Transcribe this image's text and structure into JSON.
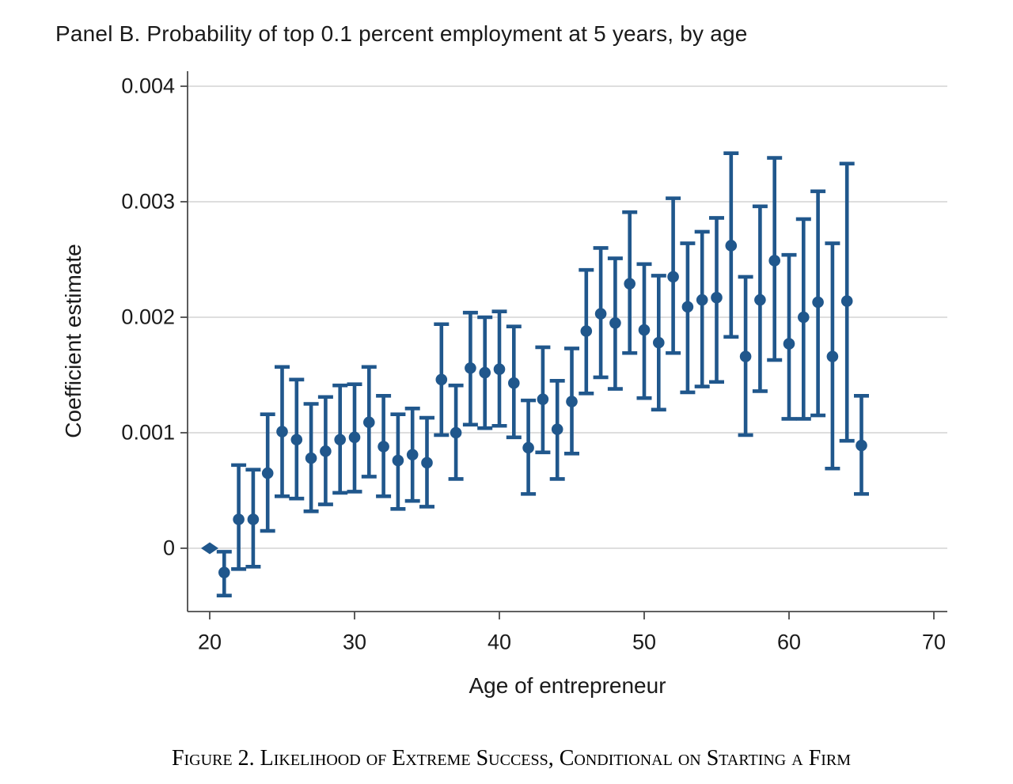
{
  "chart_data": {
    "type": "scatter",
    "subtype": "coefficient-plot-with-95ci-error-bars",
    "title": "Panel B. Probability of top 0.1 percent employment at 5 years, by age",
    "xlabel": "Age of entrepreneur",
    "ylabel": "Coefficient estimate",
    "caption": "Figure 2. Likelihood of Extreme Success, Conditional on Starting a Firm",
    "x_ticks": [
      20,
      30,
      40,
      50,
      60,
      70
    ],
    "y_ticks": [
      0,
      0.001,
      0.002,
      0.003,
      0.004
    ],
    "y_tick_labels": [
      "0",
      "0.001",
      "0.002",
      "0.003",
      "0.004"
    ],
    "xlim": [
      18.5,
      70.9
    ],
    "ylim": [
      -0.00055,
      0.00413
    ],
    "grid": "horizontal-on",
    "legend": "none",
    "marker_color": "#20578c",
    "grid_color": "#d4d4d4",
    "axis_color": "#4a4a4a",
    "text_color": "#1a1a1a",
    "reference_point_note": "age 20 is the omitted reference category, plotted as a diamond at 0 with no confidence interval",
    "points": [
      {
        "age": 20,
        "est": 0,
        "ref": true
      },
      {
        "age": 21,
        "est": -0.00021,
        "lo": -0.00041,
        "hi": -3e-05
      },
      {
        "age": 22,
        "est": 0.00025,
        "lo": -0.00018,
        "hi": 0.00072
      },
      {
        "age": 23,
        "est": 0.00025,
        "lo": -0.00016,
        "hi": 0.00068
      },
      {
        "age": 24,
        "est": 0.00065,
        "lo": 0.00015,
        "hi": 0.00116
      },
      {
        "age": 25,
        "est": 0.00101,
        "lo": 0.00045,
        "hi": 0.00157
      },
      {
        "age": 26,
        "est": 0.00094,
        "lo": 0.00043,
        "hi": 0.00146
      },
      {
        "age": 27,
        "est": 0.00078,
        "lo": 0.00032,
        "hi": 0.00125
      },
      {
        "age": 28,
        "est": 0.00084,
        "lo": 0.00038,
        "hi": 0.00131
      },
      {
        "age": 29,
        "est": 0.00094,
        "lo": 0.00048,
        "hi": 0.00141
      },
      {
        "age": 30,
        "est": 0.00096,
        "lo": 0.00049,
        "hi": 0.00142
      },
      {
        "age": 31,
        "est": 0.00109,
        "lo": 0.00062,
        "hi": 0.00157
      },
      {
        "age": 32,
        "est": 0.00088,
        "lo": 0.00045,
        "hi": 0.00132
      },
      {
        "age": 33,
        "est": 0.00076,
        "lo": 0.00034,
        "hi": 0.00116
      },
      {
        "age": 34,
        "est": 0.00081,
        "lo": 0.00041,
        "hi": 0.00121
      },
      {
        "age": 35,
        "est": 0.00074,
        "lo": 0.00036,
        "hi": 0.00113
      },
      {
        "age": 36,
        "est": 0.00146,
        "lo": 0.00098,
        "hi": 0.00194
      },
      {
        "age": 37,
        "est": 0.001,
        "lo": 0.0006,
        "hi": 0.00141
      },
      {
        "age": 38,
        "est": 0.00156,
        "lo": 0.00107,
        "hi": 0.00204
      },
      {
        "age": 39,
        "est": 0.00152,
        "lo": 0.00104,
        "hi": 0.002
      },
      {
        "age": 40,
        "est": 0.00155,
        "lo": 0.00106,
        "hi": 0.00205
      },
      {
        "age": 41,
        "est": 0.00143,
        "lo": 0.00096,
        "hi": 0.00192
      },
      {
        "age": 42,
        "est": 0.00087,
        "lo": 0.00047,
        "hi": 0.00128
      },
      {
        "age": 43,
        "est": 0.00129,
        "lo": 0.00083,
        "hi": 0.00174
      },
      {
        "age": 44,
        "est": 0.00103,
        "lo": 0.0006,
        "hi": 0.00145
      },
      {
        "age": 45,
        "est": 0.00127,
        "lo": 0.00082,
        "hi": 0.00173
      },
      {
        "age": 46,
        "est": 0.00188,
        "lo": 0.00134,
        "hi": 0.00241
      },
      {
        "age": 47,
        "est": 0.00203,
        "lo": 0.00148,
        "hi": 0.0026
      },
      {
        "age": 48,
        "est": 0.00195,
        "lo": 0.00138,
        "hi": 0.00251
      },
      {
        "age": 49,
        "est": 0.00229,
        "lo": 0.00169,
        "hi": 0.00291
      },
      {
        "age": 50,
        "est": 0.00189,
        "lo": 0.0013,
        "hi": 0.00246
      },
      {
        "age": 51,
        "est": 0.00178,
        "lo": 0.0012,
        "hi": 0.00236
      },
      {
        "age": 52,
        "est": 0.00235,
        "lo": 0.00169,
        "hi": 0.00303
      },
      {
        "age": 53,
        "est": 0.00209,
        "lo": 0.00135,
        "hi": 0.00264
      },
      {
        "age": 54,
        "est": 0.00215,
        "lo": 0.0014,
        "hi": 0.00274
      },
      {
        "age": 55,
        "est": 0.00217,
        "lo": 0.00144,
        "hi": 0.00286
      },
      {
        "age": 56,
        "est": 0.00262,
        "lo": 0.00183,
        "hi": 0.00342
      },
      {
        "age": 57,
        "est": 0.00166,
        "lo": 0.00098,
        "hi": 0.00235
      },
      {
        "age": 58,
        "est": 0.00215,
        "lo": 0.00136,
        "hi": 0.00296
      },
      {
        "age": 59,
        "est": 0.00249,
        "lo": 0.00163,
        "hi": 0.00338
      },
      {
        "age": 60,
        "est": 0.00177,
        "lo": 0.00112,
        "hi": 0.00254
      },
      {
        "age": 61,
        "est": 0.002,
        "lo": 0.00112,
        "hi": 0.00285
      },
      {
        "age": 62,
        "est": 0.00213,
        "lo": 0.00115,
        "hi": 0.00309
      },
      {
        "age": 63,
        "est": 0.00166,
        "lo": 0.00069,
        "hi": 0.00264
      },
      {
        "age": 64,
        "est": 0.00214,
        "lo": 0.00093,
        "hi": 0.00333
      },
      {
        "age": 65,
        "est": 0.00089,
        "lo": 0.00047,
        "hi": 0.00132
      }
    ]
  }
}
